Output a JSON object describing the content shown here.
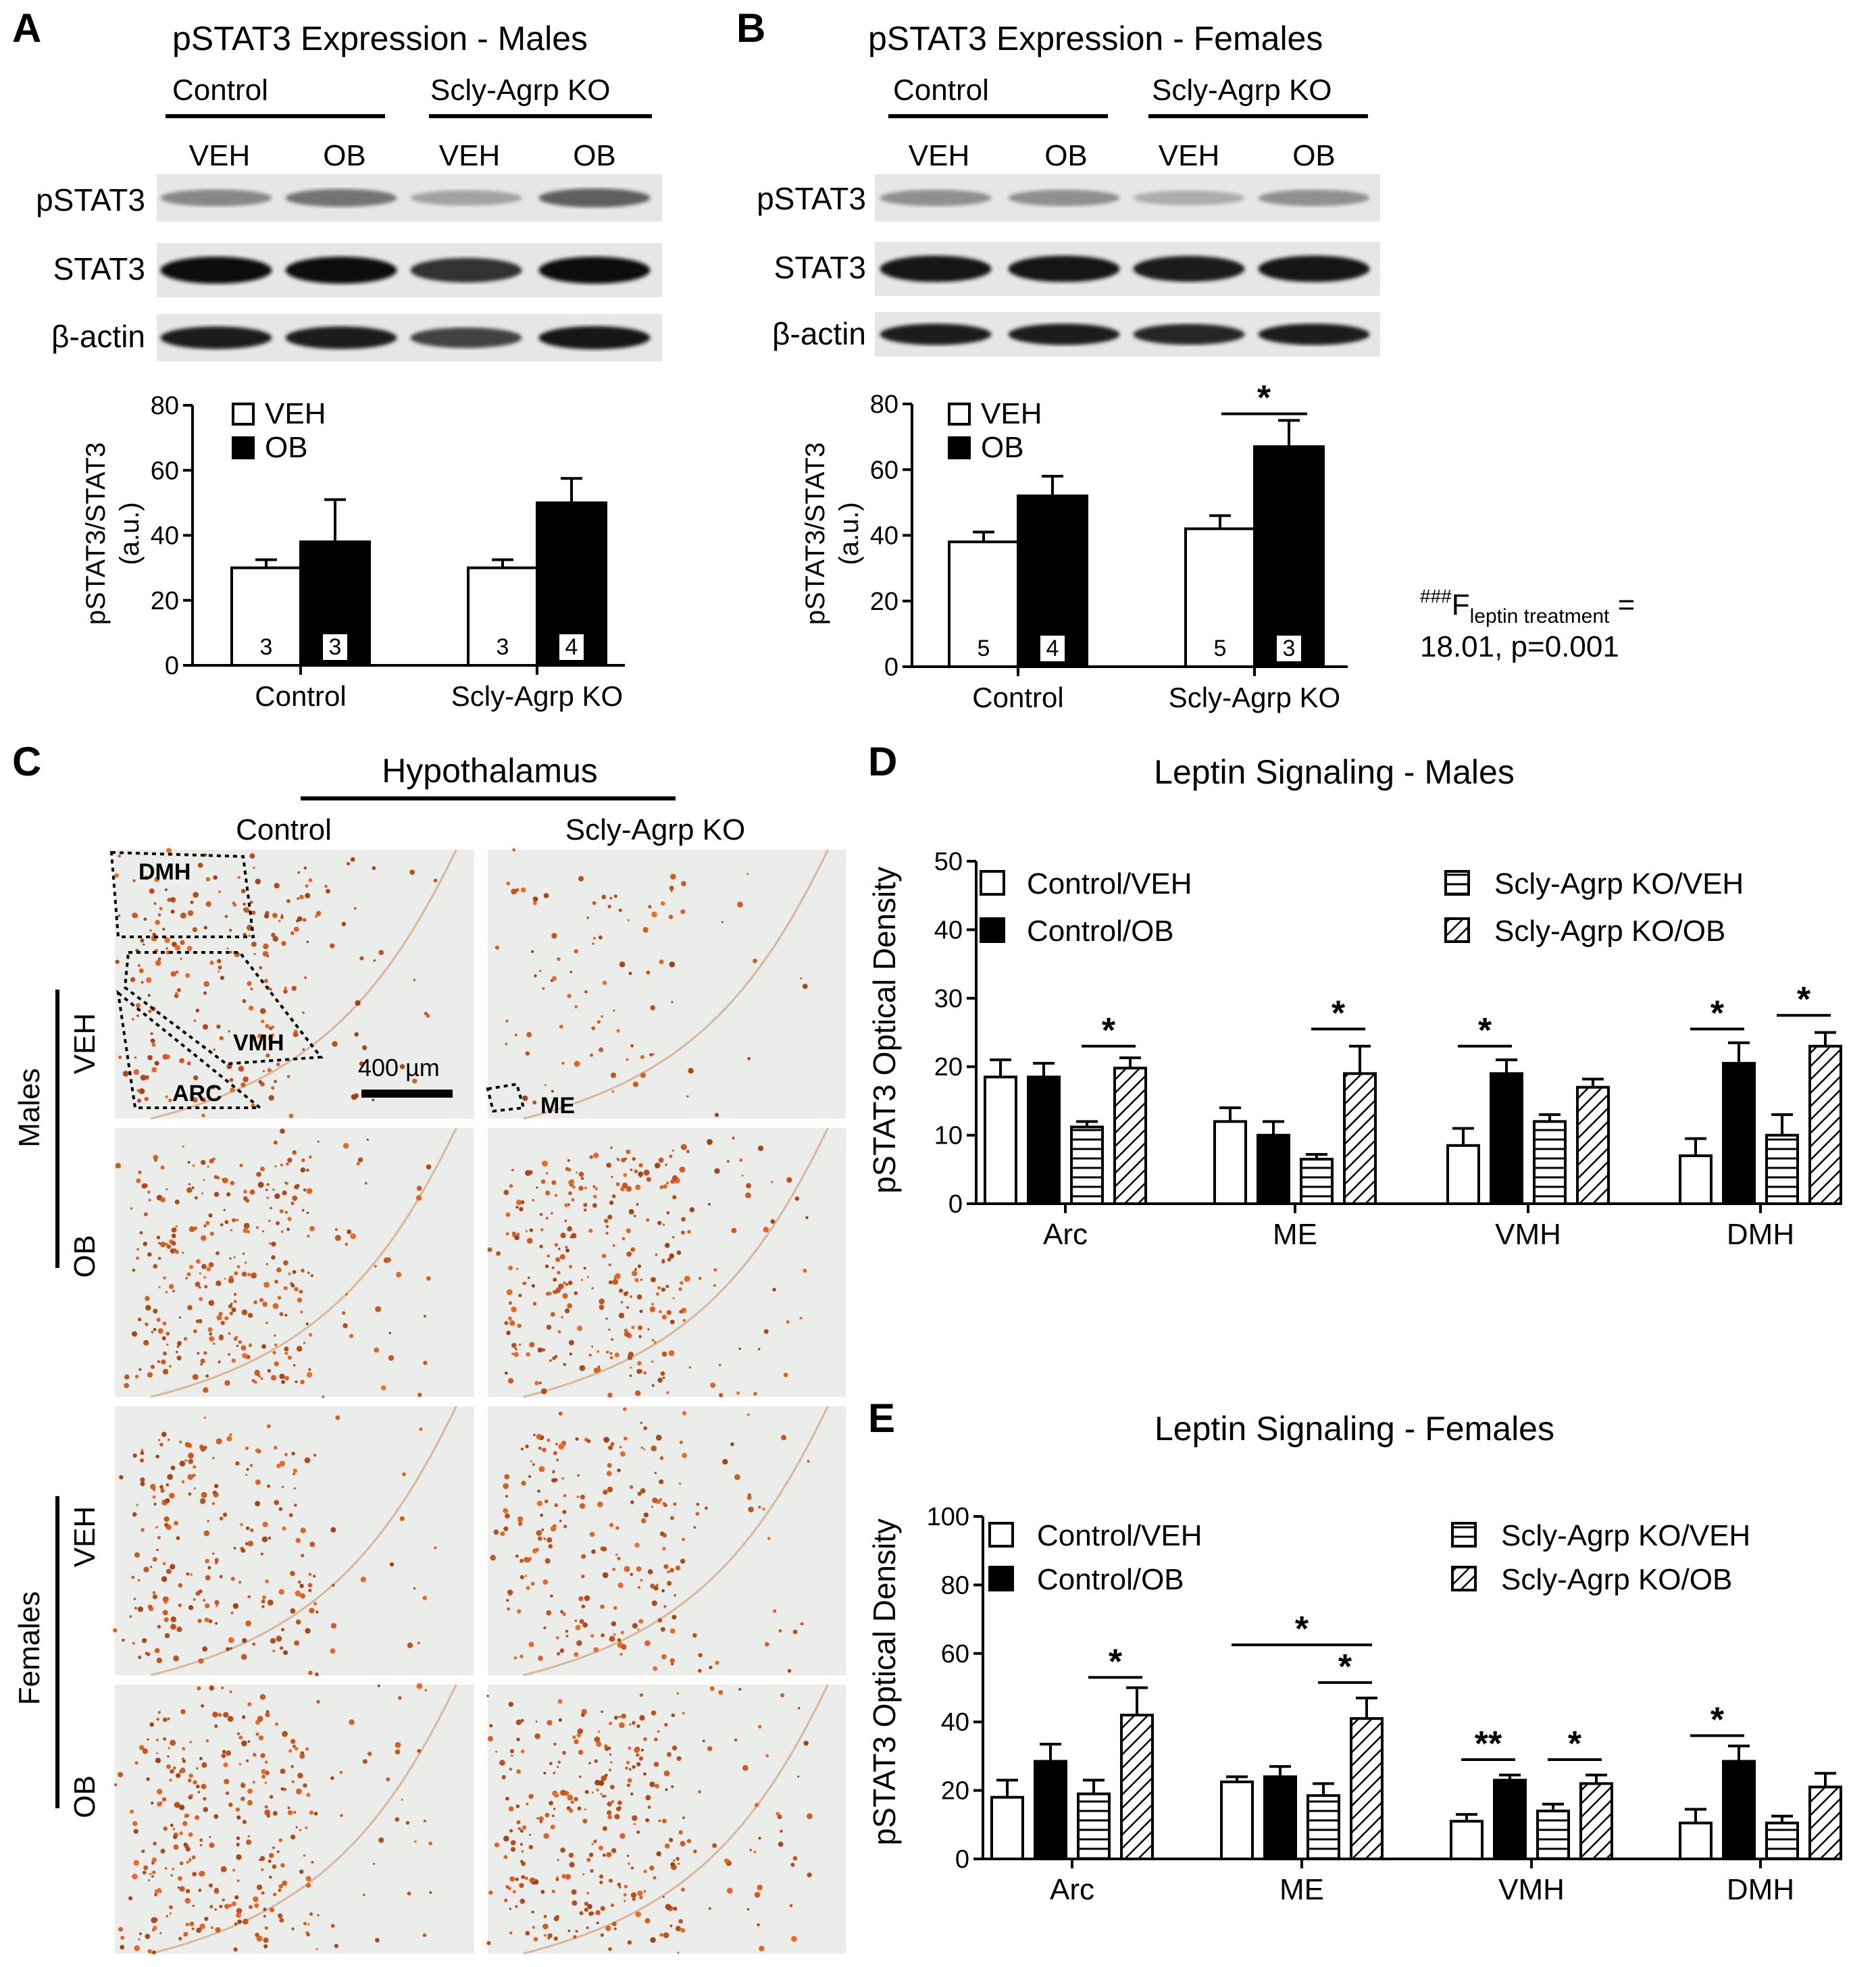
{
  "panelA": {
    "letter": "A",
    "title": "pSTAT3 Expression - Males",
    "groups": [
      "Control",
      "Scly-Agrp KO"
    ],
    "lanes": [
      "VEH",
      "OB",
      "VEH",
      "OB"
    ],
    "blot_rows": [
      "pSTAT3",
      "STAT3",
      "β-actin"
    ],
    "blot_intensity": {
      "pSTAT3": [
        0.35,
        0.45,
        0.2,
        0.55
      ],
      "STAT3": [
        1.0,
        1.0,
        0.8,
        1.0
      ],
      "beta_actin": [
        0.9,
        0.9,
        0.7,
        0.95
      ]
    },
    "legend": [
      "VEH",
      "OB"
    ],
    "ylabel": [
      "pSTAT3/STAT3",
      "(a.u.)"
    ],
    "chart_data": {
      "type": "bar",
      "categories": [
        "Control",
        "Scly-Agrp KO"
      ],
      "series": [
        {
          "name": "VEH",
          "values": [
            30,
            30
          ],
          "errors": [
            2.5,
            2.5
          ],
          "n": [
            "3",
            "3"
          ]
        },
        {
          "name": "OB",
          "values": [
            38,
            50
          ],
          "errors": [
            13,
            7.5
          ],
          "n": [
            "3",
            "4"
          ]
        }
      ],
      "ylim": [
        0,
        80
      ],
      "yticks": [
        "0",
        "20",
        "40",
        "60",
        "80"
      ]
    }
  },
  "panelB": {
    "letter": "B",
    "title": "pSTAT3 Expression - Females",
    "groups": [
      "Control",
      "Scly-Agrp KO"
    ],
    "lanes": [
      "VEH",
      "OB",
      "VEH",
      "OB"
    ],
    "blot_rows": [
      "pSTAT3",
      "STAT3",
      "β-actin"
    ],
    "blot_intensity": {
      "pSTAT3": [
        0.3,
        0.3,
        0.15,
        0.3
      ],
      "STAT3": [
        0.95,
        0.95,
        0.9,
        0.95
      ],
      "beta_actin": [
        0.9,
        0.9,
        0.85,
        0.9
      ]
    },
    "legend": [
      "VEH",
      "OB"
    ],
    "ylabel": [
      "pSTAT3/STAT3",
      "(a.u.)"
    ],
    "chart_data": {
      "type": "bar",
      "categories": [
        "Control",
        "Scly-Agrp KO"
      ],
      "series": [
        {
          "name": "VEH",
          "values": [
            38,
            42
          ],
          "errors": [
            3,
            4
          ],
          "n": [
            "5",
            "5"
          ]
        },
        {
          "name": "OB",
          "values": [
            52,
            67
          ],
          "errors": [
            6,
            8
          ],
          "n": [
            "4",
            "3"
          ]
        }
      ],
      "ylim": [
        0,
        80
      ],
      "yticks": [
        "0",
        "20",
        "40",
        "60",
        "80"
      ],
      "significance": [
        {
          "label": "*",
          "category": 1
        }
      ]
    },
    "stat_note": {
      "sup": "###",
      "f": "F",
      "sub": "leptin treatment",
      "eq": " =",
      "line2": "18.01, p=0.001"
    }
  },
  "panelC": {
    "letter": "C",
    "header": "Hypothalamus",
    "columns": [
      "Control",
      "Scly-Agrp KO"
    ],
    "sexes": [
      "Males",
      "Females"
    ],
    "treatments": [
      "VEH",
      "OB",
      "VEH",
      "OB"
    ],
    "regions": [
      "DMH",
      "VMH",
      "ARC",
      "ME"
    ],
    "scale_bar": "400 µm"
  },
  "panelD": {
    "letter": "D",
    "title": "Leptin Signaling - Males",
    "ylabel": "pSTAT3 Optical Density",
    "legend": [
      "Control/VEH",
      "Control/OB",
      "Scly-Agrp KO/VEH",
      "Scly-Agrp KO/OB"
    ],
    "chart_data": {
      "type": "bar",
      "categories": [
        "Arc",
        "ME",
        "VMH",
        "DMH"
      ],
      "series": [
        {
          "name": "Control/VEH",
          "values": [
            18.5,
            12,
            8.5,
            7
          ],
          "errors": [
            2.5,
            2,
            2.5,
            2.5
          ]
        },
        {
          "name": "Control/OB",
          "values": [
            18.5,
            10,
            19,
            20.5
          ],
          "errors": [
            2,
            2,
            2,
            3
          ]
        },
        {
          "name": "Scly-Agrp KO/VEH",
          "values": [
            11.2,
            6.5,
            12,
            10
          ],
          "errors": [
            0.8,
            0.7,
            1,
            3
          ]
        },
        {
          "name": "Scly-Agrp KO/OB",
          "values": [
            19.8,
            19,
            17,
            23
          ],
          "errors": [
            1.5,
            4,
            1.2,
            2
          ]
        }
      ],
      "ylim": [
        0,
        50
      ],
      "yticks": [
        "0",
        "10",
        "20",
        "30",
        "40",
        "50"
      ],
      "significance": [
        {
          "label": "*",
          "cat": 0,
          "from": 2,
          "to": 3,
          "y": 23
        },
        {
          "label": "*",
          "cat": 1,
          "from": 2,
          "to": 3,
          "y": 25.5
        },
        {
          "label": "*",
          "cat": 2,
          "from": 0,
          "to": 1,
          "y": 23
        },
        {
          "label": "*",
          "cat": 3,
          "from": 0,
          "to": 1,
          "y": 25.5
        },
        {
          "label": "*",
          "cat": 3,
          "from": 2,
          "to": 3,
          "y": 27.5
        }
      ]
    }
  },
  "panelE": {
    "letter": "E",
    "title": "Leptin Signaling - Females",
    "ylabel": "pSTAT3 Optical Density",
    "legend": [
      "Control/VEH",
      "Control/OB",
      "Scly-Agrp KO/VEH",
      "Scly-Agrp KO/OB"
    ],
    "chart_data": {
      "type": "bar",
      "categories": [
        "Arc",
        "ME",
        "VMH",
        "DMH"
      ],
      "series": [
        {
          "name": "Control/VEH",
          "values": [
            18,
            22.5,
            11,
            10.5
          ],
          "errors": [
            5,
            1.5,
            2,
            4
          ]
        },
        {
          "name": "Control/OB",
          "values": [
            28.5,
            24,
            23,
            28.5
          ],
          "errors": [
            5,
            3,
            1.5,
            4.5
          ]
        },
        {
          "name": "Scly-Agrp KO/VEH",
          "values": [
            19,
            18.5,
            14,
            10.5
          ],
          "errors": [
            4,
            3.5,
            2,
            2
          ]
        },
        {
          "name": "Scly-Agrp KO/OB",
          "values": [
            42,
            41,
            22,
            21
          ],
          "errors": [
            8,
            6,
            2.5,
            4
          ]
        }
      ],
      "ylim": [
        0,
        100
      ],
      "yticks": [
        "0",
        "20",
        "40",
        "60",
        "80",
        "100"
      ],
      "significance": [
        {
          "label": "*",
          "cat": 0,
          "from": 2,
          "to": 3,
          "y": 53
        },
        {
          "label": "*",
          "cat": 1,
          "from": 0,
          "to": 3,
          "y": 62.5
        },
        {
          "label": "*",
          "cat": 1,
          "from": 2,
          "to": 3,
          "y": 51.5
        },
        {
          "label": "**",
          "cat": 2,
          "from": 0,
          "to": 1,
          "y": 29
        },
        {
          "label": "*",
          "cat": 2,
          "from": 2,
          "to": 3,
          "y": 29
        },
        {
          "label": "*",
          "cat": 3,
          "from": 0,
          "to": 1,
          "y": 36
        }
      ]
    }
  }
}
